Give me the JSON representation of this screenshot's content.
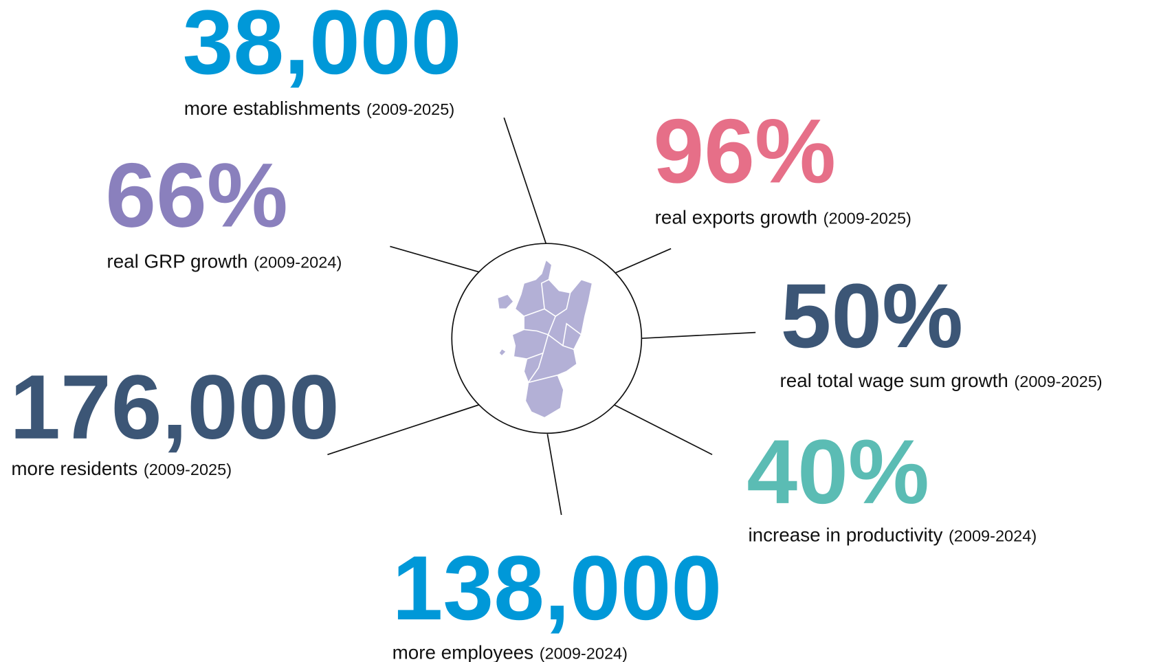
{
  "stats": [
    {
      "value": "38,000",
      "label": "more establishments",
      "period": "(2009-2025)",
      "color": "#0098d8"
    },
    {
      "value": "66%",
      "label": "real GRP growth",
      "period": "(2009-2024)",
      "color": "#8a80bd"
    },
    {
      "value": "96%",
      "label": "real exports growth",
      "period": "(2009-2025)",
      "color": "#e66f88"
    },
    {
      "value": "50%",
      "label": "real total wage sum growth",
      "period": "(2009-2025)",
      "color": "#3c5676"
    },
    {
      "value": "176,000",
      "label": "more residents",
      "period": "(2009-2025)",
      "color": "#3c5676"
    },
    {
      "value": "40%",
      "label": "increase in productivity",
      "period": "(2009-2024)",
      "color": "#5bbcb4"
    },
    {
      "value": "138,000",
      "label": "more employees",
      "period": "(2009-2024)",
      "color": "#0098d8"
    }
  ]
}
